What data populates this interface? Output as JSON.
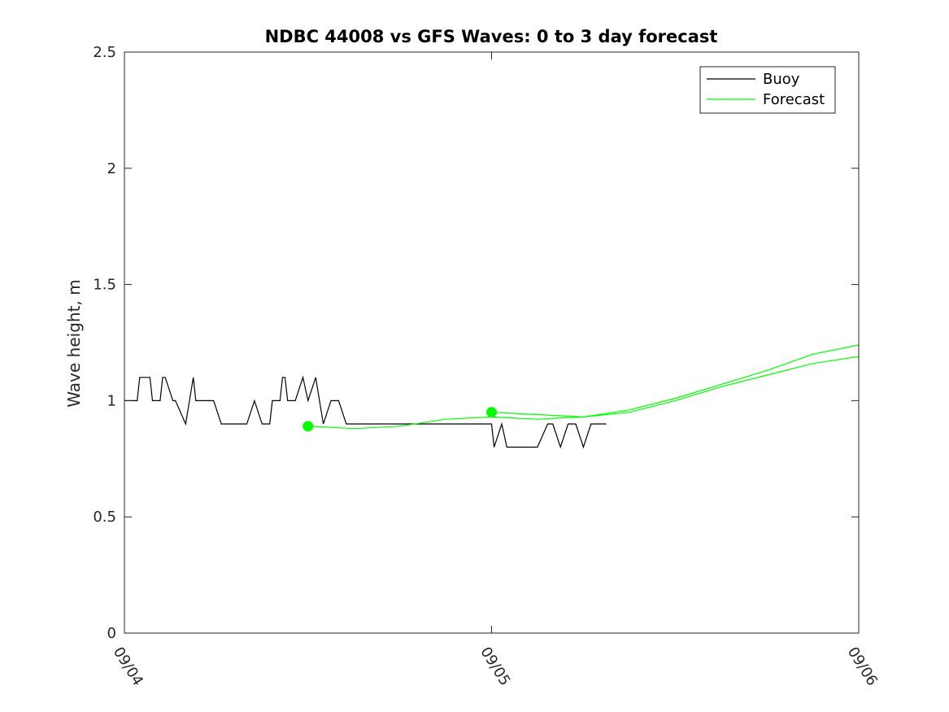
{
  "chart_data": {
    "type": "line",
    "title": "NDBC 44008 vs GFS Waves: 0 to 3 day forecast",
    "xlabel": "",
    "ylabel": "Wave height, m",
    "xlim": [
      "09/04 00:00",
      "09/06 00:00"
    ],
    "ylim": [
      0,
      2.5
    ],
    "yticks": [
      0,
      0.5,
      1,
      1.5,
      2,
      2.5
    ],
    "yticklabels": [
      "0",
      "0.5",
      "1",
      "1.5",
      "2",
      "2.5"
    ],
    "xticks": [
      "09/04 00:00",
      "09/05 00:00",
      "09/06 00:00"
    ],
    "xticklabels": [
      "09/04",
      "09/05",
      "09/06"
    ],
    "grid": false,
    "legend": {
      "placement": "top-right",
      "entries": [
        "Buoy",
        "Forecast"
      ]
    },
    "colors": {
      "buoy": "#000000",
      "forecast": "#00ff00",
      "axis": "#262626"
    },
    "series": [
      {
        "name": "Buoy",
        "x": [
          "09/04 00:00",
          "09/04 00:50",
          "09/04 01:00",
          "09/04 01:40",
          "09/04 01:50",
          "09/04 02:20",
          "09/04 02:30",
          "09/04 02:40",
          "09/04 03:10",
          "09/04 03:20",
          "09/04 04:00",
          "09/04 04:30",
          "09/04 04:40",
          "09/04 05:10",
          "09/04 05:20",
          "09/04 05:50",
          "09/04 06:20",
          "09/04 06:30",
          "09/04 07:00",
          "09/04 07:40",
          "09/04 08:00",
          "09/04 08:30",
          "09/04 09:00",
          "09/04 09:30",
          "09/04 09:40",
          "09/04 10:10",
          "09/04 10:20",
          "09/04 10:30",
          "09/04 10:40",
          "09/04 11:00",
          "09/04 11:10",
          "09/04 11:40",
          "09/04 12:00",
          "09/04 12:30",
          "09/04 13:00",
          "09/04 13:30",
          "09/04 14:00",
          "09/04 14:30",
          "09/04 15:00",
          "09/04 15:30",
          "09/04 16:00",
          "09/04 17:00",
          "09/04 17:30",
          "09/04 18:00",
          "09/04 18:30",
          "09/04 19:00",
          "09/04 20:00",
          "09/04 21:00",
          "09/04 22:00",
          "09/04 23:00",
          "09/05 00:00",
          "09/05 00:10",
          "09/05 00:40",
          "09/05 01:00",
          "09/05 01:30",
          "09/05 02:00",
          "09/05 02:30",
          "09/05 03:00",
          "09/05 03:40",
          "09/05 04:00",
          "09/05 04:30",
          "09/05 05:00",
          "09/05 05:30",
          "09/05 06:00",
          "09/05 06:30",
          "09/05 07:00",
          "09/05 07:30"
        ],
        "y": [
          1.0,
          1.0,
          1.1,
          1.1,
          1.0,
          1.0,
          1.1,
          1.1,
          1.0,
          1.0,
          0.9,
          1.1,
          1.0,
          1.0,
          1.0,
          1.0,
          0.9,
          0.9,
          0.9,
          0.9,
          0.9,
          1.0,
          0.9,
          0.9,
          1.0,
          1.0,
          1.1,
          1.1,
          1.0,
          1.0,
          1.0,
          1.1,
          1.0,
          1.1,
          0.9,
          1.0,
          1.0,
          0.9,
          0.9,
          0.9,
          0.9,
          0.9,
          0.9,
          0.9,
          0.9,
          0.9,
          0.9,
          0.9,
          0.9,
          0.9,
          0.9,
          0.8,
          0.9,
          0.8,
          0.8,
          0.8,
          0.8,
          0.8,
          0.9,
          0.9,
          0.8,
          0.9,
          0.9,
          0.8,
          0.9,
          0.9,
          0.9
        ]
      },
      {
        "name": "Forecast",
        "x": [
          "09/04 12:00",
          "09/04 15:00",
          "09/04 18:00",
          "09/04 21:00",
          "09/05 00:00",
          "09/05 03:00",
          "09/05 06:00",
          "09/05 09:00",
          "09/05 12:00",
          "09/05 15:00",
          "09/05 18:00",
          "09/05 21:00",
          "09/06 00:00"
        ],
        "y": [
          0.89,
          0.88,
          0.89,
          0.92,
          0.93,
          0.92,
          0.93,
          0.95,
          1.0,
          1.06,
          1.11,
          1.16,
          1.19
        ]
      },
      {
        "name": "",
        "x": [
          "09/05 00:00",
          "09/05 03:00",
          "09/05 06:00",
          "09/05 09:00",
          "09/05 12:00",
          "09/05 15:00",
          "09/05 18:00",
          "09/05 21:00",
          "09/06 00:00"
        ],
        "y": [
          0.95,
          0.94,
          0.93,
          0.96,
          1.01,
          1.07,
          1.13,
          1.2,
          1.24
        ]
      }
    ],
    "markers": [
      {
        "x": "09/04 12:00",
        "y": 0.89
      },
      {
        "x": "09/05 00:00",
        "y": 0.95
      }
    ]
  }
}
